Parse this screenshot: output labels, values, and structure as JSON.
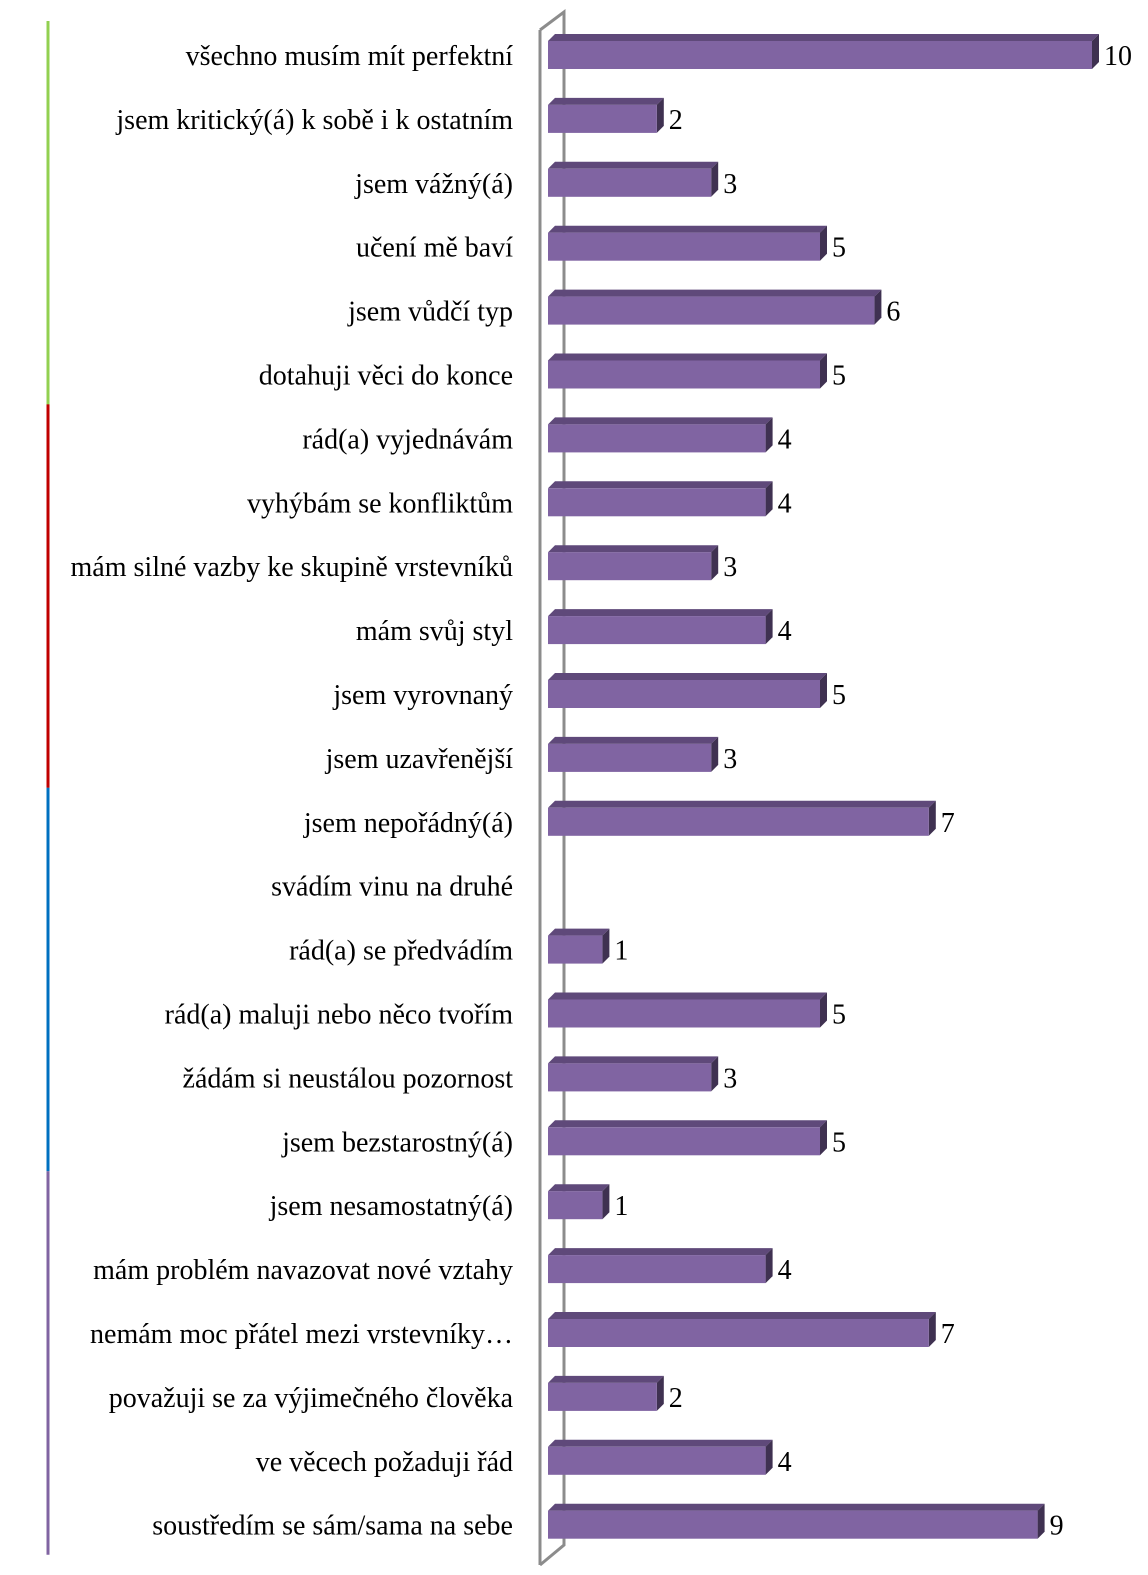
{
  "chart_data": {
    "type": "bar",
    "orientation": "horizontal",
    "style": "3d",
    "xlim": [
      0,
      10
    ],
    "grid": false,
    "legend": "none",
    "categories": [
      "všechno musím mít perfektní",
      "jsem kritický(á) k sobě i k ostatním",
      "jsem vážný(á)",
      "učení mě baví",
      "jsem vůdčí typ",
      "dotahuji věci do konce",
      "rád(a) vyjednávám",
      "vyhýbám se konfliktům",
      "mám silné vazby ke skupině vrstevníků",
      "mám svůj styl",
      "jsem vyrovnaný",
      "jsem uzavřenější",
      "jsem nepořádný(á)",
      "svádím vinu na druhé",
      "rád(a) se předvádím",
      "rád(a) maluji nebo něco tvořím",
      "žádám si neustálou pozornost",
      "jsem bezstarostný(á)",
      "jsem nesamostatný(á)",
      "mám problém navazovat nové vztahy",
      "nemám moc přátel mezi vrstevníky…",
      "považuji se za výjimečného člověka",
      "ve věcech požaduji řád",
      "soustředím se sám/sama na sebe"
    ],
    "values": [
      10,
      2,
      3,
      5,
      6,
      5,
      4,
      4,
      3,
      4,
      5,
      3,
      7,
      null,
      1,
      5,
      3,
      5,
      1,
      4,
      7,
      2,
      4,
      9
    ],
    "value_labels": [
      "10",
      "2",
      "3",
      "5",
      "6",
      "5",
      "4",
      "4",
      "3",
      "4",
      "5",
      "3",
      "7",
      "",
      "1",
      "5",
      "3",
      "5",
      "1",
      "4",
      "7",
      "2",
      "4",
      "9"
    ],
    "groups": [
      {
        "start": 0,
        "end": 5,
        "color": "#92d050"
      },
      {
        "start": 6,
        "end": 11,
        "color": "#c00000"
      },
      {
        "start": 12,
        "end": 17,
        "color": "#0070c0"
      },
      {
        "start": 18,
        "end": 23,
        "color": "#8064a2"
      }
    ],
    "colors": {
      "bar_front": "#8064a2",
      "bar_top": "#5f497a",
      "bar_side": "#3f3151",
      "wall": "#8c8c8c"
    }
  }
}
